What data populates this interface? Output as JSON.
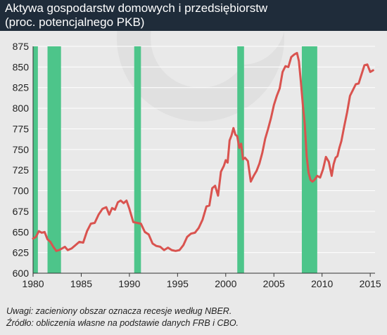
{
  "header": {
    "title": "Aktywa gospodarstw domowych i przedsiębiorstw",
    "subtitle": "(proc. potencjalnego PKB)"
  },
  "footnotes": {
    "note": "Uwagi: zacieniony obszar oznacza recesje według NBER.",
    "source": "Źródło: obliczenia własne na podstawie danych FRB i CBO."
  },
  "colors": {
    "header_bg": "#1f2c3a",
    "plot_bg": "#e9e9e9",
    "line": "#d9534f",
    "recession": "#4dc58a",
    "axis": "#333333",
    "watermark": "#dcdcdc"
  },
  "chart_data": {
    "type": "line",
    "title": "Aktywa gospodarstw domowych i przedsiębiorstw",
    "subtitle": "(proc. potencjalnego PKB)",
    "xlabel": "",
    "ylabel": "",
    "xlim": [
      1980,
      2015.5
    ],
    "ylim": [
      600,
      875
    ],
    "x_ticks": [
      1980,
      1985,
      1990,
      1995,
      2000,
      2005,
      2010,
      2015
    ],
    "x_tick_labels": [
      "1980",
      "1985",
      "1990",
      "1995",
      "2000",
      "2005",
      "2010",
      "2015"
    ],
    "y_ticks": [
      600,
      625,
      650,
      675,
      700,
      725,
      750,
      775,
      800,
      825,
      850,
      875
    ],
    "y_tick_labels": [
      "600",
      "625",
      "650",
      "675",
      "700",
      "725",
      "750",
      "775",
      "800",
      "825",
      "850",
      "875"
    ],
    "grid": "horizontal",
    "legend": "none",
    "recessions": [
      [
        1980.0,
        1980.5
      ],
      [
        1981.5,
        1982.9
      ],
      [
        1990.5,
        1991.2
      ],
      [
        2001.2,
        2001.9
      ],
      [
        2007.9,
        2009.5
      ]
    ],
    "series": [
      {
        "x": [
          1980.0,
          1980.3,
          1980.6,
          1980.9,
          1981.2,
          1981.5,
          1981.8,
          1982.1,
          1982.4,
          1982.7,
          1983.0,
          1983.3,
          1983.6,
          1984.0,
          1984.4,
          1984.8,
          1985.2,
          1985.6,
          1986.0,
          1986.4,
          1986.8,
          1987.2,
          1987.6,
          1987.9,
          1988.2,
          1988.5,
          1988.8,
          1989.1,
          1989.4,
          1989.7,
          1990.0,
          1990.4,
          1990.8,
          1991.2,
          1991.6,
          1992.0,
          1992.4,
          1992.8,
          1993.2,
          1993.6,
          1994.0,
          1994.4,
          1994.8,
          1995.2,
          1995.6,
          1996.0,
          1996.4,
          1996.8,
          1997.2,
          1997.6,
          1998.0,
          1998.3,
          1998.6,
          1998.9,
          1999.2,
          1999.5,
          1999.8,
          2000.0,
          2000.2,
          2000.4,
          2000.6,
          2000.8,
          2001.0,
          2001.2,
          2001.4,
          2001.6,
          2001.8,
          2002.0,
          2002.3,
          2002.6,
          2002.9,
          2003.2,
          2003.5,
          2003.8,
          2004.1,
          2004.4,
          2004.7,
          2005.0,
          2005.3,
          2005.6,
          2005.9,
          2006.2,
          2006.5,
          2006.8,
          2007.1,
          2007.4,
          2007.6,
          2007.8,
          2008.0,
          2008.2,
          2008.4,
          2008.6,
          2008.8,
          2009.0,
          2009.2,
          2009.5,
          2009.8,
          2010.1,
          2010.4,
          2010.7,
          2011.0,
          2011.2,
          2011.4,
          2011.6,
          2011.8,
          2012.0,
          2012.3,
          2012.6,
          2012.9,
          2013.2,
          2013.5,
          2013.8,
          2014.1,
          2014.4,
          2014.7,
          2015.0,
          2015.3
        ],
        "values": [
          642,
          644,
          651,
          649,
          650,
          641,
          638,
          632,
          627,
          628,
          630,
          632,
          628,
          630,
          634,
          638,
          637,
          651,
          660,
          661,
          671,
          678,
          680,
          671,
          679,
          677,
          686,
          688,
          685,
          688,
          678,
          662,
          661,
          660,
          650,
          647,
          636,
          633,
          632,
          628,
          631,
          628,
          627,
          628,
          634,
          644,
          648,
          649,
          655,
          665,
          681,
          682,
          703,
          706,
          694,
          723,
          730,
          737,
          734,
          761,
          767,
          776,
          768,
          766,
          752,
          757,
          738,
          740,
          736,
          711,
          718,
          724,
          733,
          746,
          763,
          775,
          788,
          804,
          815,
          824,
          844,
          851,
          850,
          862,
          865,
          867,
          857,
          832,
          805,
          781,
          742,
          722,
          713,
          711,
          713,
          718,
          716,
          726,
          741,
          735,
          718,
          732,
          740,
          742,
          752,
          760,
          778,
          795,
          815,
          822,
          829,
          830,
          841,
          852,
          853,
          844,
          846
        ]
      }
    ]
  }
}
